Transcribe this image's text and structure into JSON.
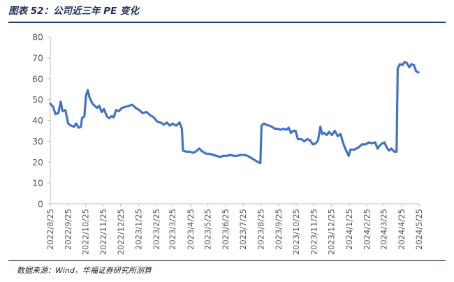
{
  "figure": {
    "title": "图表 52：公司近三年 PE 变化",
    "source": "数据来源：Wind，华福证券研究所测算"
  },
  "colors": {
    "series": "#4472c4",
    "axis": "#bfbfbf",
    "tick_text": "#595959",
    "rule": "#1f3864"
  },
  "chart_data": {
    "type": "line",
    "title": "",
    "xlabel": "",
    "ylabel": "",
    "ylim": [
      0,
      80
    ],
    "yticks": [
      0,
      10,
      20,
      30,
      40,
      50,
      60,
      70,
      80
    ],
    "grid": false,
    "legend": "none",
    "xticks": [
      "2022/8/25",
      "2022/9/25",
      "2022/10/25",
      "2022/11/25",
      "2022/12/25",
      "2023/1/25",
      "2023/2/25",
      "2023/3/25",
      "2023/4/25",
      "2023/5/25",
      "2023/6/25",
      "2023/7/25",
      "2023/8/25",
      "2023/9/25",
      "2023/10/25",
      "2023/11/25",
      "2023/12/25",
      "2024/1/25",
      "2024/2/25",
      "2024/3/25",
      "2024/4/25",
      "2024/5/25"
    ],
    "series": [
      {
        "name": "",
        "points": [
          [
            "2022-08-25",
            48
          ],
          [
            "2022-08-30",
            46.5
          ],
          [
            "2022-09-03",
            43
          ],
          [
            "2022-09-08",
            43.5
          ],
          [
            "2022-09-12",
            49
          ],
          [
            "2022-09-15",
            44.5
          ],
          [
            "2022-09-20",
            45
          ],
          [
            "2022-09-25",
            38.5
          ],
          [
            "2022-09-30",
            37.5
          ],
          [
            "2022-10-05",
            37
          ],
          [
            "2022-10-09",
            38.5
          ],
          [
            "2022-10-13",
            36.5
          ],
          [
            "2022-10-17",
            37
          ],
          [
            "2022-10-19",
            41
          ],
          [
            "2022-10-23",
            42
          ],
          [
            "2022-10-26",
            52
          ],
          [
            "2022-10-29",
            54.5
          ],
          [
            "2022-11-01",
            51
          ],
          [
            "2022-11-06",
            48
          ],
          [
            "2022-11-10",
            47
          ],
          [
            "2022-11-14",
            46
          ],
          [
            "2022-11-18",
            47
          ],
          [
            "2022-11-22",
            44
          ],
          [
            "2022-11-26",
            45.5
          ],
          [
            "2022-12-01",
            42
          ],
          [
            "2022-12-05",
            41
          ],
          [
            "2022-12-09",
            42
          ],
          [
            "2022-12-13",
            41.5
          ],
          [
            "2022-12-17",
            45
          ],
          [
            "2022-12-22",
            44.5
          ],
          [
            "2022-12-27",
            46
          ],
          [
            "2023-01-02",
            46.5
          ],
          [
            "2023-01-08",
            47
          ],
          [
            "2023-01-14",
            47.5
          ],
          [
            "2023-01-20",
            46
          ],
          [
            "2023-01-26",
            45
          ],
          [
            "2023-02-01",
            43.5
          ],
          [
            "2023-02-08",
            44
          ],
          [
            "2023-02-14",
            42.5
          ],
          [
            "2023-02-20",
            41.5
          ],
          [
            "2023-02-26",
            39.5
          ],
          [
            "2023-03-04",
            39
          ],
          [
            "2023-03-10",
            38
          ],
          [
            "2023-03-15",
            39
          ],
          [
            "2023-03-20",
            37.5
          ],
          [
            "2023-03-25",
            38.5
          ],
          [
            "2023-03-31",
            37.5
          ],
          [
            "2023-04-06",
            39
          ],
          [
            "2023-04-10",
            36
          ],
          [
            "2023-04-12",
            25.5
          ],
          [
            "2023-04-18",
            25
          ],
          [
            "2023-04-24",
            25
          ],
          [
            "2023-04-29",
            24.5
          ],
          [
            "2023-05-04",
            25
          ],
          [
            "2023-05-10",
            26.5
          ],
          [
            "2023-05-16",
            25
          ],
          [
            "2023-05-22",
            24
          ],
          [
            "2023-05-28",
            24
          ],
          [
            "2023-06-03",
            23.5
          ],
          [
            "2023-06-09",
            23
          ],
          [
            "2023-06-15",
            22.5
          ],
          [
            "2023-06-21",
            23
          ],
          [
            "2023-06-27",
            23
          ],
          [
            "2023-07-03",
            23.5
          ],
          [
            "2023-07-09",
            23
          ],
          [
            "2023-07-15",
            23
          ],
          [
            "2023-07-21",
            23.5
          ],
          [
            "2023-07-27",
            23.5
          ],
          [
            "2023-08-02",
            23
          ],
          [
            "2023-08-08",
            22
          ],
          [
            "2023-08-14",
            21
          ],
          [
            "2023-08-20",
            20
          ],
          [
            "2023-08-24",
            19.5
          ],
          [
            "2023-08-26",
            37.5
          ],
          [
            "2023-08-30",
            38.5
          ],
          [
            "2023-09-03",
            38
          ],
          [
            "2023-09-08",
            37.5
          ],
          [
            "2023-09-13",
            37
          ],
          [
            "2023-09-18",
            36
          ],
          [
            "2023-09-23",
            36
          ],
          [
            "2023-09-28",
            35.5
          ],
          [
            "2023-10-03",
            36
          ],
          [
            "2023-10-08",
            35.5
          ],
          [
            "2023-10-12",
            36.5
          ],
          [
            "2023-10-16",
            34
          ],
          [
            "2023-10-20",
            35
          ],
          [
            "2023-10-24",
            35
          ],
          [
            "2023-10-28",
            31
          ],
          [
            "2023-11-03",
            31
          ],
          [
            "2023-11-08",
            30
          ],
          [
            "2023-11-13",
            31
          ],
          [
            "2023-11-18",
            30.5
          ],
          [
            "2023-11-23",
            28.5
          ],
          [
            "2023-11-28",
            29
          ],
          [
            "2023-12-02",
            30.5
          ],
          [
            "2023-12-06",
            37
          ],
          [
            "2023-12-09",
            33.5
          ],
          [
            "2023-12-13",
            34
          ],
          [
            "2023-12-17",
            33
          ],
          [
            "2023-12-21",
            34.5
          ],
          [
            "2023-12-26",
            33
          ],
          [
            "2023-12-31",
            35
          ],
          [
            "2024-01-05",
            32.5
          ],
          [
            "2024-01-10",
            33.5
          ],
          [
            "2024-01-14",
            29.5
          ],
          [
            "2024-01-18",
            26.5
          ],
          [
            "2024-01-24",
            23
          ],
          [
            "2024-01-27",
            26
          ],
          [
            "2024-02-03",
            26
          ],
          [
            "2024-02-10",
            27
          ],
          [
            "2024-02-16",
            28.5
          ],
          [
            "2024-02-22",
            28.5
          ],
          [
            "2024-02-28",
            29.5
          ],
          [
            "2024-03-04",
            29
          ],
          [
            "2024-03-10",
            29.5
          ],
          [
            "2024-03-14",
            26.5
          ],
          [
            "2024-03-18",
            28
          ],
          [
            "2024-03-22",
            29
          ],
          [
            "2024-03-26",
            29.5
          ],
          [
            "2024-03-30",
            27
          ],
          [
            "2024-04-03",
            25.5
          ],
          [
            "2024-04-07",
            26.5
          ],
          [
            "2024-04-12",
            25
          ],
          [
            "2024-04-16",
            25
          ],
          [
            "2024-04-18",
            65
          ],
          [
            "2024-04-22",
            67
          ],
          [
            "2024-04-26",
            66.5
          ],
          [
            "2024-04-30",
            68
          ],
          [
            "2024-05-04",
            67.5
          ],
          [
            "2024-05-08",
            65.5
          ],
          [
            "2024-05-12",
            67
          ],
          [
            "2024-05-16",
            66.5
          ],
          [
            "2024-05-20",
            63.5
          ],
          [
            "2024-05-24",
            63
          ]
        ]
      }
    ]
  }
}
